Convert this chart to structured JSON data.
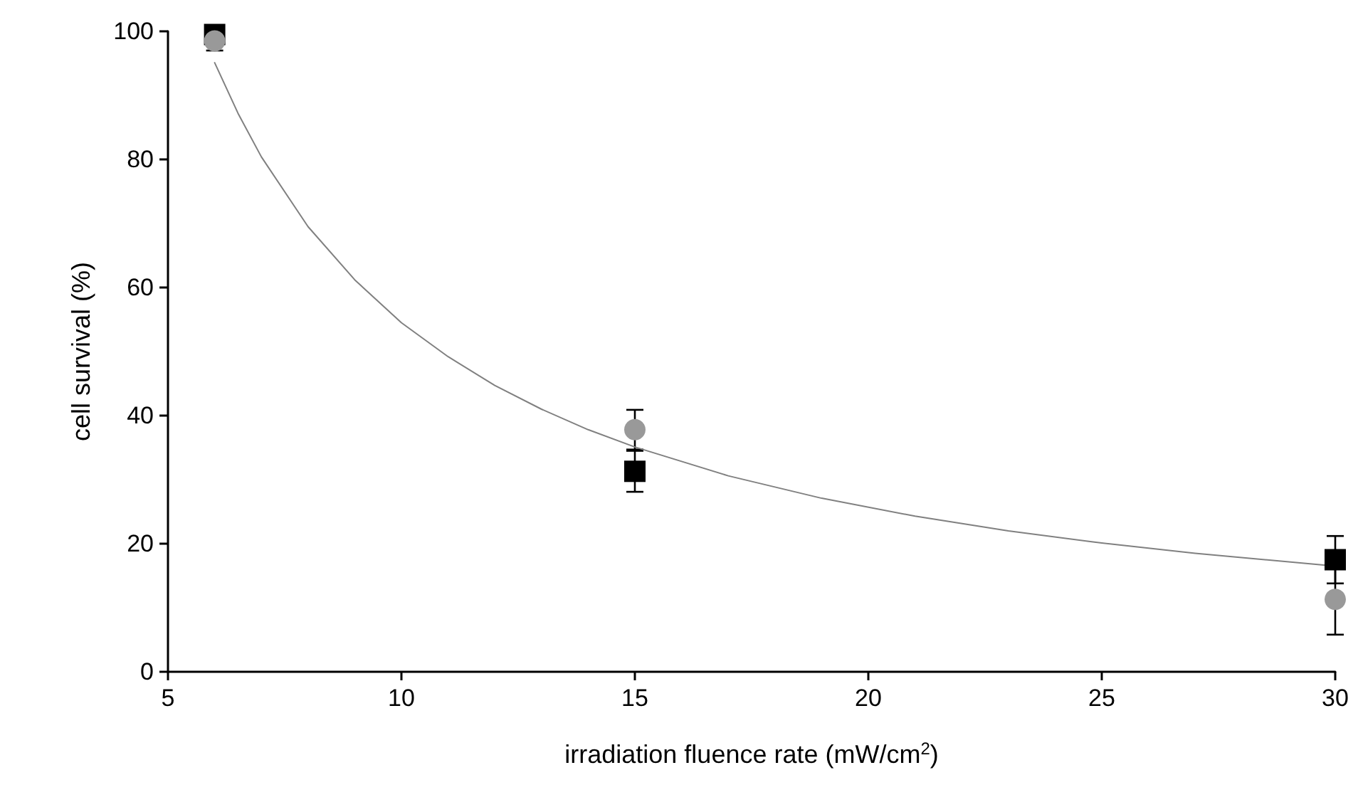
{
  "chart_data": {
    "type": "scatter",
    "xlabel": "irradiation fluence rate (mW/cm$^{2}$)",
    "ylabel": "cell survival (%)",
    "xlim": [
      5,
      30
    ],
    "xticks": [
      5,
      10,
      15,
      20,
      25,
      30
    ],
    "ylim": [
      0,
      100
    ],
    "yticks": [
      0,
      20,
      40,
      60,
      80,
      100
    ],
    "grid": false,
    "series": [
      {
        "type": "line",
        "color": "#808080",
        "marker": "none",
        "line_style": "solid",
        "x": [
          6,
          6.5,
          7,
          8,
          9,
          10,
          11,
          12,
          13,
          14,
          15,
          17,
          19,
          21,
          23,
          25,
          27,
          30
        ],
        "values": [
          95.1,
          87.2,
          80.4,
          69.5,
          61.2,
          54.5,
          49.2,
          44.7,
          41.0,
          37.8,
          35.1,
          30.6,
          27.1,
          24.3,
          22.0,
          20.1,
          18.5,
          16.5
        ]
      },
      {
        "color": "#000000",
        "marker": "square",
        "x": [
          6,
          15,
          30
        ],
        "values": [
          99.5,
          31.3,
          17.5
        ],
        "errors": [
          0.5,
          3.2,
          3.7
        ]
      },
      {
        "color": "#999999",
        "marker": "circle",
        "x": [
          6,
          15,
          30
        ],
        "values": [
          98.5,
          37.8,
          11.3
        ],
        "errors": [
          1.5,
          3.1,
          5.5
        ]
      }
    ]
  }
}
